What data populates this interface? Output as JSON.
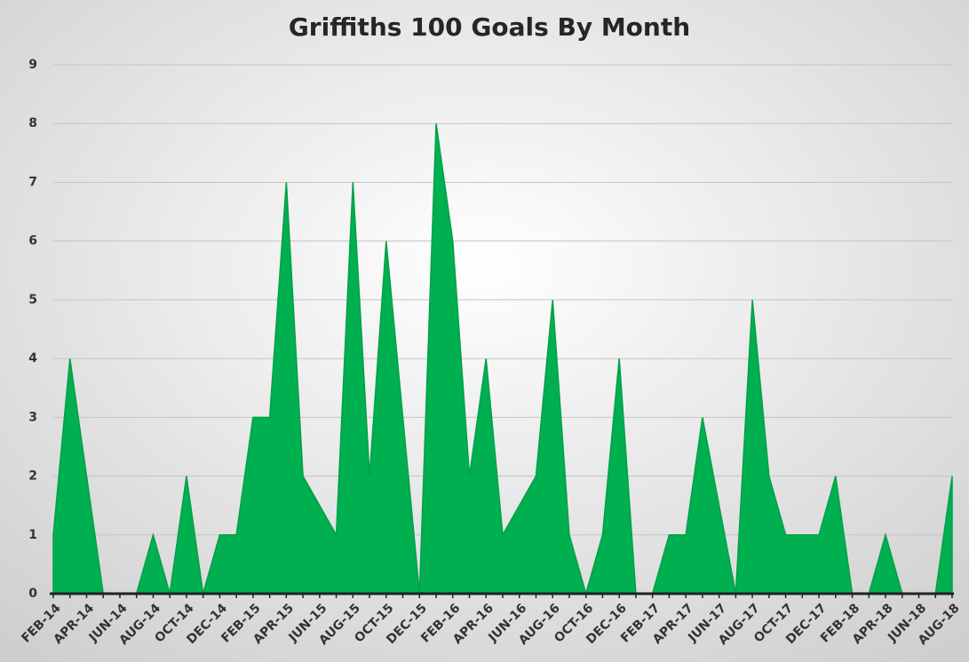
{
  "chart_data": {
    "type": "area",
    "title": "Griffiths 100 Goals By Month",
    "categories": [
      "FEB-14",
      null,
      "APR-14",
      null,
      "JUN-14",
      null,
      "AUG-14",
      null,
      "OCT-14",
      null,
      "DEC-14",
      null,
      "FEB-15",
      null,
      "APR-15",
      null,
      "JUN-15",
      null,
      "AUG-15",
      null,
      "OCT-15",
      null,
      "DEC-15",
      null,
      "FEB-16",
      null,
      "APR-16",
      null,
      "JUN-16",
      null,
      "AUG-16",
      null,
      "OCT-16",
      null,
      "DEC-16",
      null,
      "FEB-17",
      null,
      "APR-17",
      null,
      "JUN-17",
      null,
      "AUG-17",
      null,
      "OCT-17",
      null,
      "DEC-17",
      null,
      "FEB-18",
      null,
      "APR-18",
      null,
      "JUN-18",
      null,
      "AUG-18"
    ],
    "values": [
      1,
      4,
      2,
      0,
      0,
      0,
      1,
      0,
      2,
      0,
      1,
      1,
      3,
      3,
      7,
      2,
      1.5,
      1,
      7,
      2,
      6,
      3,
      0,
      8,
      6,
      2,
      4,
      1,
      1.5,
      2,
      5,
      1,
      0,
      1,
      4,
      0,
      0,
      1,
      1,
      3,
      1.5,
      0,
      5,
      2,
      1,
      1,
      1,
      2,
      0,
      0,
      1,
      0,
      0,
      0,
      2
    ],
    "color": "#00b050",
    "ylim": [
      0,
      9
    ],
    "yticks": [
      0,
      1,
      2,
      3,
      4,
      5,
      6,
      7,
      8,
      9
    ],
    "grid": true
  }
}
